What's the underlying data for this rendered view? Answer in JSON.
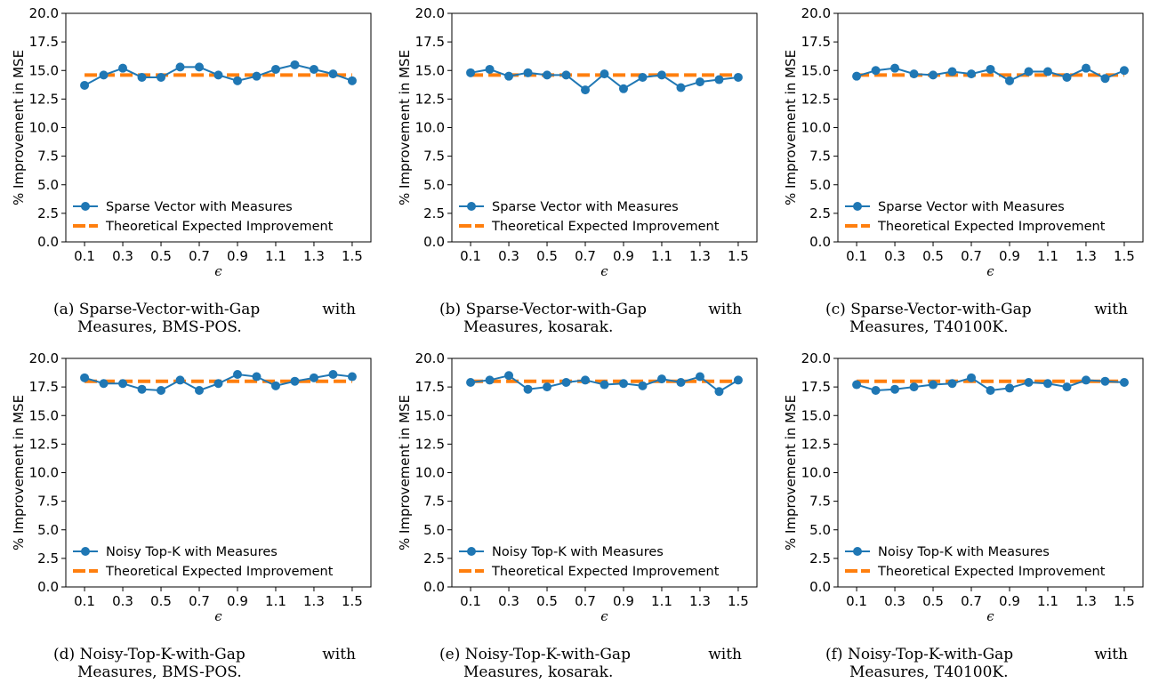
{
  "colors": {
    "series": "#1f77b4",
    "theory": "#ff7f0e",
    "axis": "#000000"
  },
  "chart_data": [
    {
      "type": "line",
      "x": [
        0.1,
        0.2,
        0.3,
        0.4,
        0.5,
        0.6,
        0.7,
        0.8,
        0.9,
        1.0,
        1.1,
        1.2,
        1.3,
        1.4,
        1.5
      ],
      "xticks": [
        "0.1",
        "0.3",
        "0.5",
        "0.7",
        "0.9",
        "1.1",
        "1.3",
        "1.5"
      ],
      "yticks": [
        "0.0",
        "2.5",
        "5.0",
        "7.5",
        "10.0",
        "12.5",
        "15.0",
        "17.5",
        "20.0"
      ],
      "ylim": [
        0,
        20
      ],
      "xlabel": "ϵ",
      "ylabel": "% Improvement in MSE",
      "series": [
        {
          "name": "Sparse Vector with Measures",
          "values": [
            13.7,
            14.6,
            15.2,
            14.4,
            14.4,
            15.3,
            15.3,
            14.6,
            14.1,
            14.5,
            15.1,
            15.5,
            15.1,
            14.7,
            14.1
          ]
        },
        {
          "name": "Theoretical Expected Improvement",
          "values": [
            14.6,
            14.6,
            14.6,
            14.6,
            14.6,
            14.6,
            14.6,
            14.6,
            14.6,
            14.6,
            14.6,
            14.6,
            14.6,
            14.6,
            14.6
          ]
        }
      ],
      "caption": {
        "label": "(a)",
        "name": "Sparse-Vector-with-Gap",
        "word": "with",
        "line2": "Measures, BMS-POS."
      }
    },
    {
      "type": "line",
      "x": [
        0.1,
        0.2,
        0.3,
        0.4,
        0.5,
        0.6,
        0.7,
        0.8,
        0.9,
        1.0,
        1.1,
        1.2,
        1.3,
        1.4,
        1.5
      ],
      "xticks": [
        "0.1",
        "0.3",
        "0.5",
        "0.7",
        "0.9",
        "1.1",
        "1.3",
        "1.5"
      ],
      "yticks": [
        "0.0",
        "2.5",
        "5.0",
        "7.5",
        "10.0",
        "12.5",
        "15.0",
        "17.5",
        "20.0"
      ],
      "ylim": [
        0,
        20
      ],
      "xlabel": "ϵ",
      "ylabel": "% Improvement in MSE",
      "series": [
        {
          "name": "Sparse Vector with Measures",
          "values": [
            14.8,
            15.1,
            14.5,
            14.8,
            14.6,
            14.6,
            13.3,
            14.7,
            13.4,
            14.4,
            14.6,
            13.5,
            14.0,
            14.2,
            14.4
          ]
        },
        {
          "name": "Theoretical Expected Improvement",
          "values": [
            14.6,
            14.6,
            14.6,
            14.6,
            14.6,
            14.6,
            14.6,
            14.6,
            14.6,
            14.6,
            14.6,
            14.6,
            14.6,
            14.6,
            14.6
          ]
        }
      ],
      "caption": {
        "label": "(b)",
        "name": "Sparse-Vector-with-Gap",
        "word": "with",
        "line2": "Measures, kosarak."
      }
    },
    {
      "type": "line",
      "x": [
        0.1,
        0.2,
        0.3,
        0.4,
        0.5,
        0.6,
        0.7,
        0.8,
        0.9,
        1.0,
        1.1,
        1.2,
        1.3,
        1.4,
        1.5
      ],
      "xticks": [
        "0.1",
        "0.3",
        "0.5",
        "0.7",
        "0.9",
        "1.1",
        "1.3",
        "1.5"
      ],
      "yticks": [
        "0.0",
        "2.5",
        "5.0",
        "7.5",
        "10.0",
        "12.5",
        "15.0",
        "17.5",
        "20.0"
      ],
      "ylim": [
        0,
        20
      ],
      "xlabel": "ϵ",
      "ylabel": "% Improvement in MSE",
      "series": [
        {
          "name": "Sparse Vector with Measures",
          "values": [
            14.5,
            15.0,
            15.2,
            14.7,
            14.6,
            14.9,
            14.7,
            15.1,
            14.1,
            14.9,
            14.9,
            14.4,
            15.2,
            14.3,
            15.0
          ]
        },
        {
          "name": "Theoretical Expected Improvement",
          "values": [
            14.6,
            14.6,
            14.6,
            14.6,
            14.6,
            14.6,
            14.6,
            14.6,
            14.6,
            14.6,
            14.6,
            14.6,
            14.6,
            14.6,
            14.6
          ]
        }
      ],
      "caption": {
        "label": "(c)",
        "name": "Sparse-Vector-with-Gap",
        "word": "with",
        "line2": "Measures, T40100K."
      }
    },
    {
      "type": "line",
      "x": [
        0.1,
        0.2,
        0.3,
        0.4,
        0.5,
        0.6,
        0.7,
        0.8,
        0.9,
        1.0,
        1.1,
        1.2,
        1.3,
        1.4,
        1.5
      ],
      "xticks": [
        "0.1",
        "0.3",
        "0.5",
        "0.7",
        "0.9",
        "1.1",
        "1.3",
        "1.5"
      ],
      "yticks": [
        "0.0",
        "2.5",
        "5.0",
        "7.5",
        "10.0",
        "12.5",
        "15.0",
        "17.5",
        "20.0"
      ],
      "ylim": [
        0,
        20
      ],
      "xlabel": "ϵ",
      "ylabel": "% Improvement in MSE",
      "series": [
        {
          "name": "Noisy Top-K with Measures",
          "values": [
            18.3,
            17.8,
            17.8,
            17.3,
            17.2,
            18.1,
            17.2,
            17.8,
            18.6,
            18.4,
            17.6,
            18.0,
            18.3,
            18.6,
            18.4
          ]
        },
        {
          "name": "Theoretical Expected Improvement",
          "values": [
            18.0,
            18.0,
            18.0,
            18.0,
            18.0,
            18.0,
            18.0,
            18.0,
            18.0,
            18.0,
            18.0,
            18.0,
            18.0,
            18.0,
            18.0
          ]
        }
      ],
      "caption": {
        "label": "(d)",
        "name": "Noisy-Top-K-with-Gap",
        "word": "with",
        "line2": "Measures, BMS-POS."
      }
    },
    {
      "type": "line",
      "x": [
        0.1,
        0.2,
        0.3,
        0.4,
        0.5,
        0.6,
        0.7,
        0.8,
        0.9,
        1.0,
        1.1,
        1.2,
        1.3,
        1.4,
        1.5
      ],
      "xticks": [
        "0.1",
        "0.3",
        "0.5",
        "0.7",
        "0.9",
        "1.1",
        "1.3",
        "1.5"
      ],
      "yticks": [
        "0.0",
        "2.5",
        "5.0",
        "7.5",
        "10.0",
        "12.5",
        "15.0",
        "17.5",
        "20.0"
      ],
      "ylim": [
        0,
        20
      ],
      "xlabel": "ϵ",
      "ylabel": "% Improvement in MSE",
      "series": [
        {
          "name": "Noisy Top-K with Measures",
          "values": [
            17.9,
            18.1,
            18.5,
            17.3,
            17.5,
            17.9,
            18.1,
            17.7,
            17.8,
            17.6,
            18.2,
            17.9,
            18.4,
            17.1,
            18.1
          ]
        },
        {
          "name": "Theoretical Expected Improvement",
          "values": [
            18.0,
            18.0,
            18.0,
            18.0,
            18.0,
            18.0,
            18.0,
            18.0,
            18.0,
            18.0,
            18.0,
            18.0,
            18.0,
            18.0,
            18.0
          ]
        }
      ],
      "caption": {
        "label": "(e)",
        "name": "Noisy-Top-K-with-Gap",
        "word": "with",
        "line2": "Measures, kosarak."
      }
    },
    {
      "type": "line",
      "x": [
        0.1,
        0.2,
        0.3,
        0.4,
        0.5,
        0.6,
        0.7,
        0.8,
        0.9,
        1.0,
        1.1,
        1.2,
        1.3,
        1.4,
        1.5
      ],
      "xticks": [
        "0.1",
        "0.3",
        "0.5",
        "0.7",
        "0.9",
        "1.1",
        "1.3",
        "1.5"
      ],
      "yticks": [
        "0.0",
        "2.5",
        "5.0",
        "7.5",
        "10.0",
        "12.5",
        "15.0",
        "17.5",
        "20.0"
      ],
      "ylim": [
        0,
        20
      ],
      "xlabel": "ϵ",
      "ylabel": "% Improvement in MSE",
      "series": [
        {
          "name": "Noisy Top-K with Measures",
          "values": [
            17.7,
            17.2,
            17.3,
            17.5,
            17.7,
            17.8,
            18.3,
            17.2,
            17.4,
            17.9,
            17.8,
            17.5,
            18.1,
            18.0,
            17.9
          ]
        },
        {
          "name": "Theoretical Expected Improvement",
          "values": [
            18.0,
            18.0,
            18.0,
            18.0,
            18.0,
            18.0,
            18.0,
            18.0,
            18.0,
            18.0,
            18.0,
            18.0,
            18.0,
            18.0,
            18.0
          ]
        }
      ],
      "caption": {
        "label": "(f)",
        "name": "Noisy-Top-K-with-Gap",
        "word": "with",
        "line2": "Measures, T40100K."
      }
    }
  ]
}
